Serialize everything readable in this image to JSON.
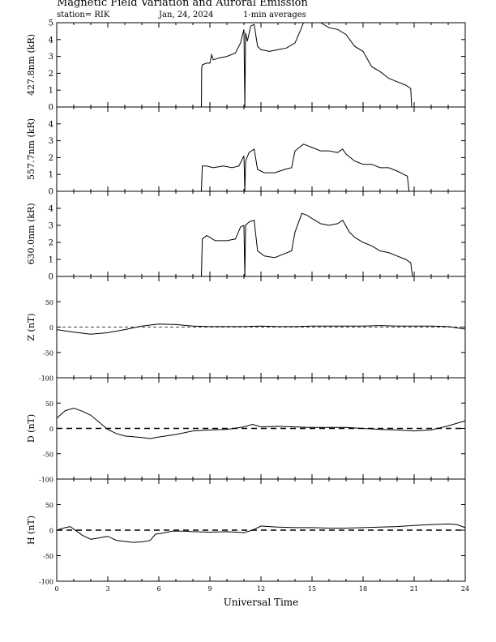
{
  "header": {
    "title": "Magnetic Field Variation and Auroral Emission",
    "station": "station= RIK",
    "date": "Jan, 24, 2024",
    "averaging": "1-min averages"
  },
  "chart_data": [
    {
      "type": "line",
      "ylabel": "427.8nm (kR)",
      "xlim": [
        0,
        24
      ],
      "ylim": [
        0,
        5
      ],
      "yticks": [
        0,
        1,
        2,
        3,
        4,
        5
      ],
      "zero_line": false,
      "series": [
        {
          "values": [
            [
              0,
              null
            ],
            [
              8.4,
              null
            ],
            [
              8.5,
              0
            ],
            [
              8.52,
              2.3
            ],
            [
              8.55,
              2.5
            ],
            [
              8.8,
              2.6
            ],
            [
              9.0,
              2.6
            ],
            [
              9.1,
              3.1
            ],
            [
              9.2,
              2.8
            ],
            [
              9.5,
              2.9
            ],
            [
              10.0,
              3.0
            ],
            [
              10.5,
              3.2
            ],
            [
              10.8,
              3.8
            ],
            [
              11.0,
              4.6
            ],
            [
              11.05,
              0
            ],
            [
              11.1,
              4.4
            ],
            [
              11.2,
              3.9
            ],
            [
              11.4,
              4.8
            ],
            [
              11.6,
              4.9
            ],
            [
              11.8,
              3.6
            ],
            [
              12.0,
              3.4
            ],
            [
              12.5,
              3.3
            ],
            [
              13.0,
              3.4
            ],
            [
              13.5,
              3.5
            ],
            [
              14.0,
              3.8
            ],
            [
              14.3,
              4.5
            ],
            [
              14.5,
              5.0
            ],
            [
              15.5,
              5.0
            ],
            [
              16.0,
              4.7
            ],
            [
              16.5,
              4.6
            ],
            [
              17.0,
              4.3
            ],
            [
              17.5,
              3.6
            ],
            [
              18.0,
              3.3
            ],
            [
              18.5,
              2.4
            ],
            [
              19.0,
              2.1
            ],
            [
              19.5,
              1.7
            ],
            [
              20.0,
              1.5
            ],
            [
              20.5,
              1.3
            ],
            [
              20.8,
              1.1
            ],
            [
              20.85,
              0
            ]
          ]
        }
      ]
    },
    {
      "type": "line",
      "ylabel": "557.7nm (kR)",
      "xlim": [
        0,
        24
      ],
      "ylim": [
        0,
        5
      ],
      "yticks": [
        0,
        1,
        2,
        3,
        4
      ],
      "zero_line": false,
      "series": [
        {
          "values": [
            [
              8.0,
              0
            ],
            [
              8.5,
              0
            ],
            [
              8.55,
              1.5
            ],
            [
              8.8,
              1.5
            ],
            [
              9.2,
              1.4
            ],
            [
              9.8,
              1.5
            ],
            [
              10.3,
              1.4
            ],
            [
              10.7,
              1.5
            ],
            [
              11.0,
              2.1
            ],
            [
              11.05,
              0
            ],
            [
              11.1,
              1.8
            ],
            [
              11.3,
              2.3
            ],
            [
              11.6,
              2.5
            ],
            [
              11.8,
              1.3
            ],
            [
              12.2,
              1.1
            ],
            [
              12.8,
              1.1
            ],
            [
              13.4,
              1.3
            ],
            [
              13.8,
              1.4
            ],
            [
              14.0,
              2.4
            ],
            [
              14.5,
              2.8
            ],
            [
              15.0,
              2.6
            ],
            [
              15.5,
              2.4
            ],
            [
              16.0,
              2.4
            ],
            [
              16.5,
              2.3
            ],
            [
              16.8,
              2.5
            ],
            [
              17.0,
              2.2
            ],
            [
              17.5,
              1.8
            ],
            [
              18.0,
              1.6
            ],
            [
              18.5,
              1.6
            ],
            [
              19.0,
              1.4
            ],
            [
              19.5,
              1.4
            ],
            [
              20.0,
              1.2
            ],
            [
              20.6,
              0.9
            ],
            [
              20.7,
              0
            ],
            [
              22.5,
              0
            ]
          ]
        }
      ]
    },
    {
      "type": "line",
      "ylabel": "630.0nm (kR)",
      "xlim": [
        0,
        24
      ],
      "ylim": [
        0,
        5
      ],
      "yticks": [
        0,
        1,
        2,
        3,
        4
      ],
      "zero_line": false,
      "series": [
        {
          "values": [
            [
              8.4,
              0
            ],
            [
              8.5,
              0
            ],
            [
              8.55,
              2.2
            ],
            [
              8.8,
              2.4
            ],
            [
              9.0,
              2.3
            ],
            [
              9.3,
              2.1
            ],
            [
              9.5,
              2.1
            ],
            [
              10.0,
              2.1
            ],
            [
              10.5,
              2.2
            ],
            [
              10.8,
              2.9
            ],
            [
              11.0,
              3.0
            ],
            [
              11.05,
              0
            ],
            [
              11.1,
              3.0
            ],
            [
              11.3,
              3.2
            ],
            [
              11.6,
              3.3
            ],
            [
              11.8,
              1.5
            ],
            [
              12.2,
              1.2
            ],
            [
              12.8,
              1.1
            ],
            [
              13.3,
              1.3
            ],
            [
              13.8,
              1.5
            ],
            [
              14.0,
              2.6
            ],
            [
              14.4,
              3.7
            ],
            [
              14.7,
              3.6
            ],
            [
              15.0,
              3.4
            ],
            [
              15.5,
              3.1
            ],
            [
              16.0,
              3.0
            ],
            [
              16.5,
              3.1
            ],
            [
              16.8,
              3.3
            ],
            [
              17.2,
              2.6
            ],
            [
              17.5,
              2.3
            ],
            [
              18.0,
              2.0
            ],
            [
              18.5,
              1.8
            ],
            [
              19.0,
              1.5
            ],
            [
              19.5,
              1.4
            ],
            [
              20.0,
              1.2
            ],
            [
              20.5,
              1.0
            ],
            [
              20.8,
              0.8
            ],
            [
              20.9,
              0
            ],
            [
              22.5,
              0
            ]
          ]
        }
      ]
    },
    {
      "type": "line",
      "ylabel": "Z (nT)",
      "xlim": [
        0,
        24
      ],
      "ylim": [
        -100,
        100
      ],
      "yticks": [
        -100,
        -50,
        0,
        50
      ],
      "zero_line": true,
      "zero_style": "thin-dashed",
      "series": [
        {
          "values": [
            [
              0,
              -5
            ],
            [
              1,
              -10
            ],
            [
              2,
              -14
            ],
            [
              3,
              -11
            ],
            [
              4,
              -5
            ],
            [
              5,
              2
            ],
            [
              6,
              6
            ],
            [
              7,
              5
            ],
            [
              8,
              2
            ],
            [
              9,
              1
            ],
            [
              10,
              1
            ],
            [
              11,
              1
            ],
            [
              12,
              2
            ],
            [
              13,
              1
            ],
            [
              14,
              1
            ],
            [
              15,
              2
            ],
            [
              16,
              2
            ],
            [
              17,
              2
            ],
            [
              18,
              2
            ],
            [
              19,
              3
            ],
            [
              20,
              2
            ],
            [
              21,
              2
            ],
            [
              22,
              2
            ],
            [
              23,
              1
            ],
            [
              24,
              -4
            ]
          ]
        }
      ]
    },
    {
      "type": "line",
      "ylabel": "D (nT)",
      "xlim": [
        0,
        24
      ],
      "ylim": [
        -100,
        100
      ],
      "yticks": [
        -100,
        -50,
        0,
        50
      ],
      "zero_line": true,
      "zero_style": "thick-dashed",
      "series": [
        {
          "values": [
            [
              0,
              20
            ],
            [
              0.5,
              35
            ],
            [
              1,
              40
            ],
            [
              1.5,
              34
            ],
            [
              2,
              26
            ],
            [
              2.5,
              12
            ],
            [
              3,
              -2
            ],
            [
              3.5,
              -10
            ],
            [
              4,
              -15
            ],
            [
              5,
              -18
            ],
            [
              5.5,
              -20
            ],
            [
              6,
              -17
            ],
            [
              7,
              -12
            ],
            [
              8,
              -5
            ],
            [
              9,
              -3
            ],
            [
              10,
              -2
            ],
            [
              11,
              3
            ],
            [
              11.5,
              8
            ],
            [
              12,
              3
            ],
            [
              13,
              4
            ],
            [
              14,
              3
            ],
            [
              15,
              2
            ],
            [
              16,
              2
            ],
            [
              17,
              2
            ],
            [
              18,
              0
            ],
            [
              19,
              -2
            ],
            [
              20,
              -3
            ],
            [
              21,
              -5
            ],
            [
              22,
              -3
            ],
            [
              23,
              5
            ],
            [
              24,
              15
            ]
          ]
        }
      ]
    },
    {
      "type": "line",
      "ylabel": "H (nT)",
      "xlim": [
        0,
        24
      ],
      "ylim": [
        -100,
        100
      ],
      "xticks": [
        0,
        3,
        6,
        9,
        12,
        15,
        18,
        21,
        24
      ],
      "xlabel": "Universal Time",
      "yticks": [
        -100,
        -50,
        0,
        50
      ],
      "zero_line": true,
      "zero_style": "thick-dashed",
      "series": [
        {
          "values": [
            [
              0,
              0
            ],
            [
              0.5,
              5
            ],
            [
              0.8,
              7
            ],
            [
              1,
              2
            ],
            [
              1.5,
              -10
            ],
            [
              2,
              -18
            ],
            [
              2.5,
              -15
            ],
            [
              3,
              -12
            ],
            [
              3.5,
              -20
            ],
            [
              4,
              -22
            ],
            [
              4.5,
              -24
            ],
            [
              5,
              -23
            ],
            [
              5.5,
              -20
            ],
            [
              5.8,
              -8
            ],
            [
              6.2,
              -6
            ],
            [
              6.8,
              -2
            ],
            [
              7.5,
              -2
            ],
            [
              8,
              -3
            ],
            [
              9,
              -4
            ],
            [
              10,
              -3
            ],
            [
              11,
              -5
            ],
            [
              11.5,
              0
            ],
            [
              12,
              8
            ],
            [
              12.5,
              7
            ],
            [
              13,
              6
            ],
            [
              14,
              5
            ],
            [
              15,
              5
            ],
            [
              16,
              4
            ],
            [
              17,
              4
            ],
            [
              18,
              5
            ],
            [
              19,
              6
            ],
            [
              20,
              7
            ],
            [
              21,
              9
            ],
            [
              22,
              11
            ],
            [
              23,
              12
            ],
            [
              23.5,
              11
            ],
            [
              24,
              5
            ]
          ]
        }
      ]
    }
  ]
}
